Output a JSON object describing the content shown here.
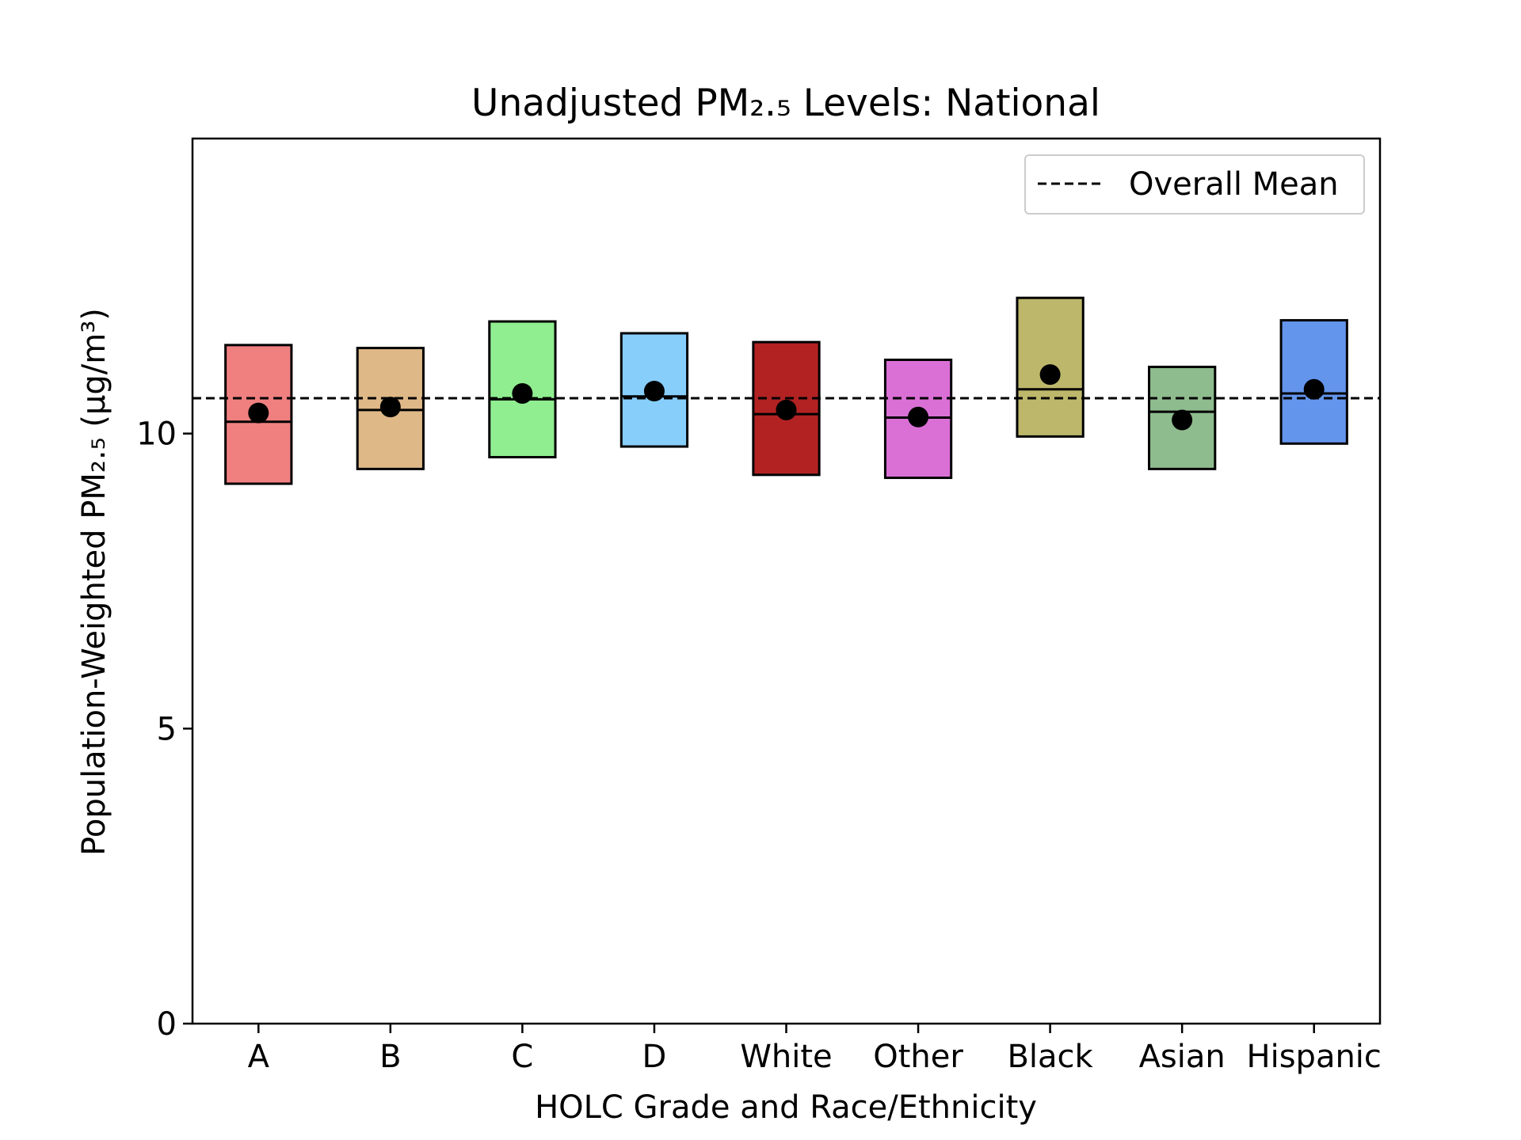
{
  "chart_data": {
    "type": "box",
    "title": "Unadjusted PM₂.₅ Levels: National",
    "xlabel": "HOLC Grade and Race/Ethnicity",
    "ylabel": "Population-Weighted PM₂.₅ (μg/m³)",
    "ylim": [
      0,
      15
    ],
    "yticks": [
      0,
      5,
      10
    ],
    "grid": false,
    "legend": {
      "placement": "top-right",
      "entries": [
        "Overall Mean"
      ]
    },
    "overall_mean": 10.6,
    "categories": [
      "A",
      "B",
      "C",
      "D",
      "White",
      "Other",
      "Black",
      "Asian",
      "Hispanic"
    ],
    "boxes": [
      {
        "category": "A",
        "q1": 9.15,
        "median": 10.2,
        "q3": 11.5,
        "mean": 10.35,
        "color": "#f08080"
      },
      {
        "category": "B",
        "q1": 9.4,
        "median": 10.4,
        "q3": 11.45,
        "mean": 10.45,
        "color": "#deb887"
      },
      {
        "category": "C",
        "q1": 9.6,
        "median": 10.58,
        "q3": 11.9,
        "mean": 10.68,
        "color": "#90ee90"
      },
      {
        "category": "D",
        "q1": 9.78,
        "median": 10.63,
        "q3": 11.7,
        "mean": 10.72,
        "color": "#87cefa"
      },
      {
        "category": "White",
        "q1": 9.3,
        "median": 10.33,
        "q3": 11.55,
        "mean": 10.4,
        "color": "#b22222"
      },
      {
        "category": "Other",
        "q1": 9.25,
        "median": 10.27,
        "q3": 11.25,
        "mean": 10.28,
        "color": "#da70d6"
      },
      {
        "category": "Black",
        "q1": 9.95,
        "median": 10.75,
        "q3": 12.3,
        "mean": 11.0,
        "color": "#bdb76b"
      },
      {
        "category": "Asian",
        "q1": 9.4,
        "median": 10.37,
        "q3": 11.13,
        "mean": 10.23,
        "color": "#8fbc8f"
      },
      {
        "category": "Hispanic",
        "q1": 9.83,
        "median": 10.68,
        "q3": 11.92,
        "mean": 10.75,
        "color": "#6495ed"
      }
    ]
  }
}
